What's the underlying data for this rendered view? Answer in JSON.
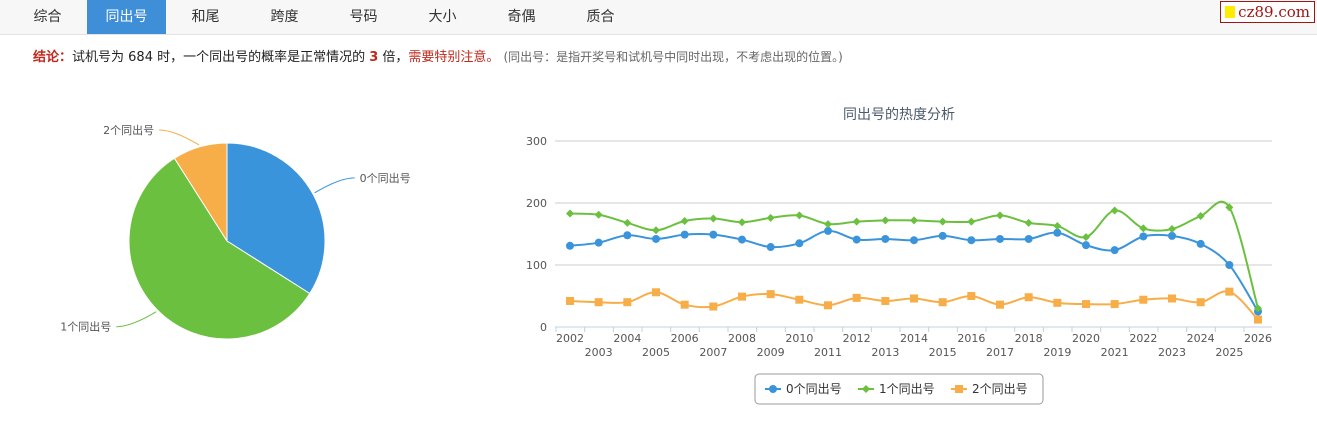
{
  "tabs": [
    "综合",
    "同出号",
    "和尾",
    "跨度",
    "号码",
    "大小",
    "奇偶",
    "质合"
  ],
  "active_tab": 1,
  "logo": "cz89.com",
  "conclusion": {
    "label": "结论：",
    "text1": "试机号为 684 时，一个同出号的概率是正常情况的 ",
    "multiple": "3",
    "text2": " 倍，",
    "warning": "需要特别注意。",
    "note": "(同出号：是指开奖号和试机号中同时出现，不考虑出现的位置。)"
  },
  "chart_data": [
    {
      "type": "pie",
      "slices": [
        {
          "name": "0个同出号",
          "value": 34,
          "color": "#3a94db"
        },
        {
          "name": "1个同出号",
          "value": 57,
          "color": "#6cc040"
        },
        {
          "name": "2个同出号",
          "value": 9,
          "color": "#f7ad48"
        }
      ]
    },
    {
      "type": "line",
      "title": "同出号的热度分析",
      "ylim": [
        0,
        300
      ],
      "yticks": [
        0,
        100,
        200,
        300
      ],
      "grid": true,
      "legend": "bottom",
      "x": [
        "2002",
        "2003",
        "2004",
        "2005",
        "2006",
        "2007",
        "2008",
        "2009",
        "2010",
        "2011",
        "2012",
        "2013",
        "2014",
        "2015",
        "2016",
        "2017",
        "2018",
        "2019",
        "2020",
        "2021",
        "2022",
        "2023",
        "2024",
        "2025",
        "2026"
      ],
      "series": [
        {
          "name": "0个同出号",
          "color": "#3a94db",
          "marker": "circle",
          "values": [
            131,
            136,
            148,
            142,
            149,
            149,
            141,
            129,
            135,
            155,
            141,
            142,
            140,
            147,
            140,
            142,
            142,
            152,
            132,
            124,
            146,
            147,
            134,
            100,
            25
          ]
        },
        {
          "name": "1个同出号",
          "color": "#6cc040",
          "marker": "diamond",
          "values": [
            183,
            181,
            168,
            156,
            171,
            175,
            169,
            176,
            180,
            166,
            170,
            172,
            172,
            170,
            170,
            180,
            168,
            163,
            145,
            188,
            159,
            158,
            179,
            193,
            30
          ]
        },
        {
          "name": "2个同出号",
          "color": "#f7ad48",
          "marker": "square",
          "values": [
            42,
            40,
            40,
            56,
            36,
            33,
            49,
            53,
            44,
            35,
            47,
            42,
            46,
            40,
            50,
            36,
            48,
            39,
            37,
            37,
            44,
            46,
            40,
            57,
            12
          ]
        }
      ]
    }
  ]
}
